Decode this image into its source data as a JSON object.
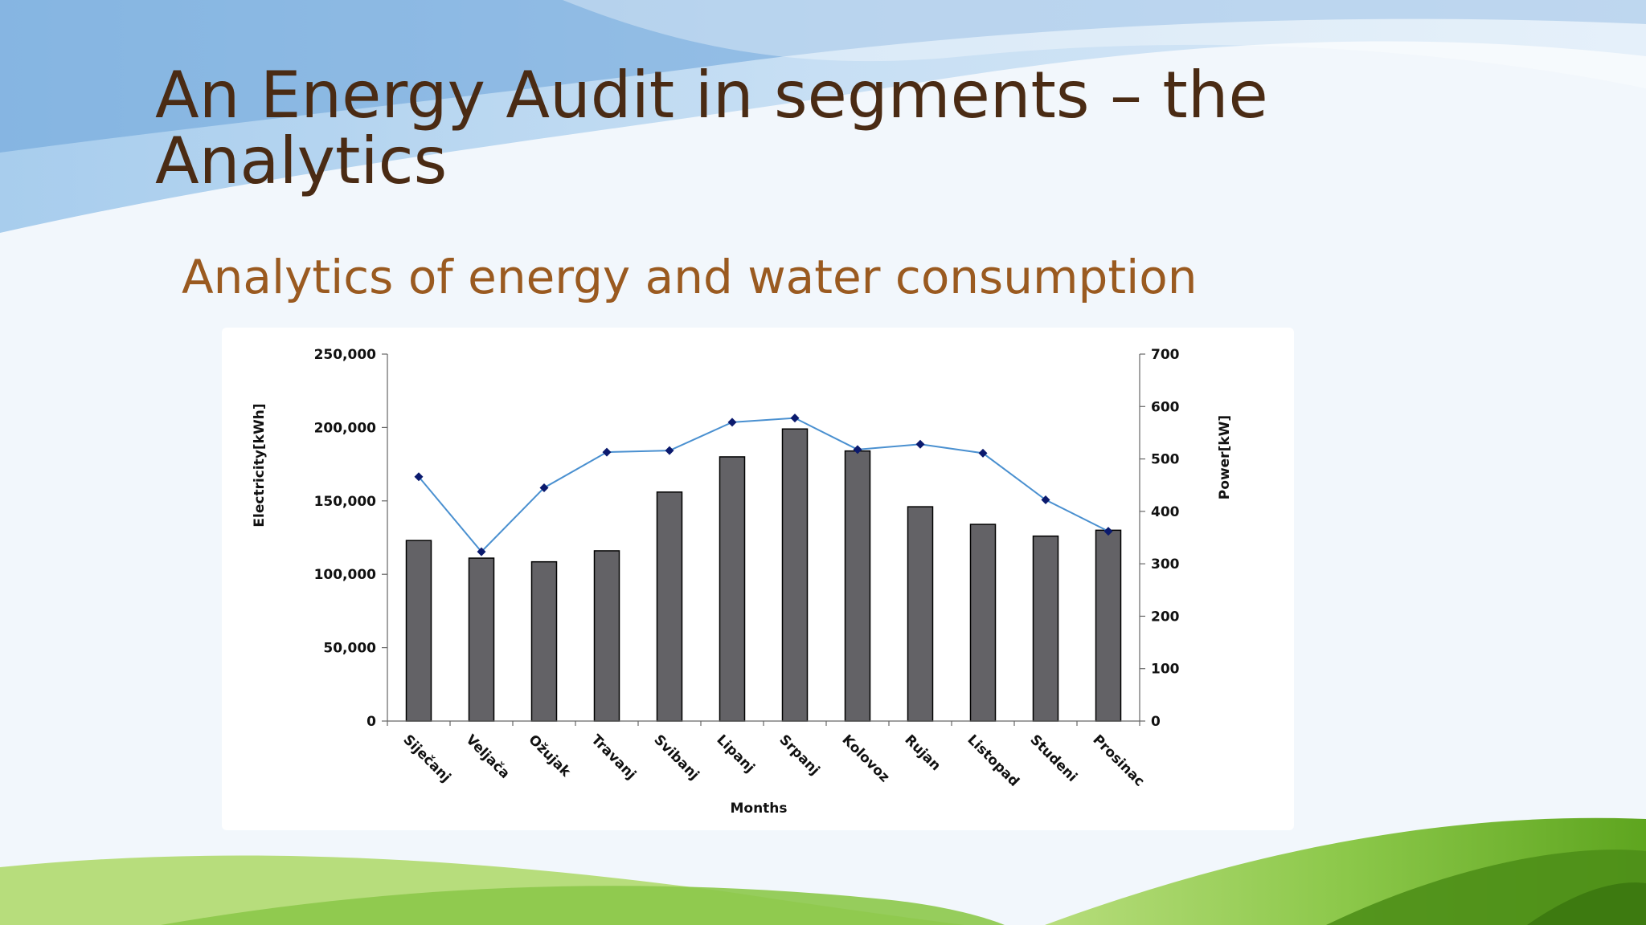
{
  "slide": {
    "title": "An Energy Audit in segments – the Analytics",
    "subtitle": "Analytics of energy and water consumption"
  },
  "colors": {
    "title": "#4a2b14",
    "subtitle": "#9a5a20",
    "bar_fill": "#636266",
    "line": "#4a90d0",
    "marker": "#0b1a6e",
    "grass_dark": "#5ea51f",
    "grass_light": "#a9d46a",
    "sky": "#6aa3d8"
  },
  "chart_data": {
    "type": "bar",
    "categories": [
      "Siječanj",
      "Veljača",
      "Ožujak",
      "Travanj",
      "Svibanj",
      "Lipanj",
      "Srpanj",
      "Kolovoz",
      "Rujan",
      "Listopad",
      "Studeni",
      "Prosinac"
    ],
    "series": [
      {
        "type": "bar",
        "axis": "left",
        "values": [
          123000,
          111000,
          108500,
          116000,
          156000,
          180000,
          199000,
          184000,
          146000,
          134000,
          126000,
          130000
        ]
      },
      {
        "type": "line",
        "axis": "right",
        "values": [
          466,
          323,
          445,
          513,
          516,
          570,
          578,
          518,
          528,
          511,
          422,
          362
        ]
      }
    ],
    "xlabel": "Months",
    "ylabel": "Electricity[kWh]",
    "y2label": "Power[kW]",
    "ylim": [
      0,
      250000
    ],
    "y2lim": [
      0,
      700
    ],
    "yticks": [
      "0",
      "50,000",
      "100,000",
      "150,000",
      "200,000",
      "250,000"
    ],
    "y2ticks": [
      "0",
      "100",
      "200",
      "300",
      "400",
      "500",
      "600",
      "700"
    ],
    "grid": false,
    "legend": "none"
  }
}
